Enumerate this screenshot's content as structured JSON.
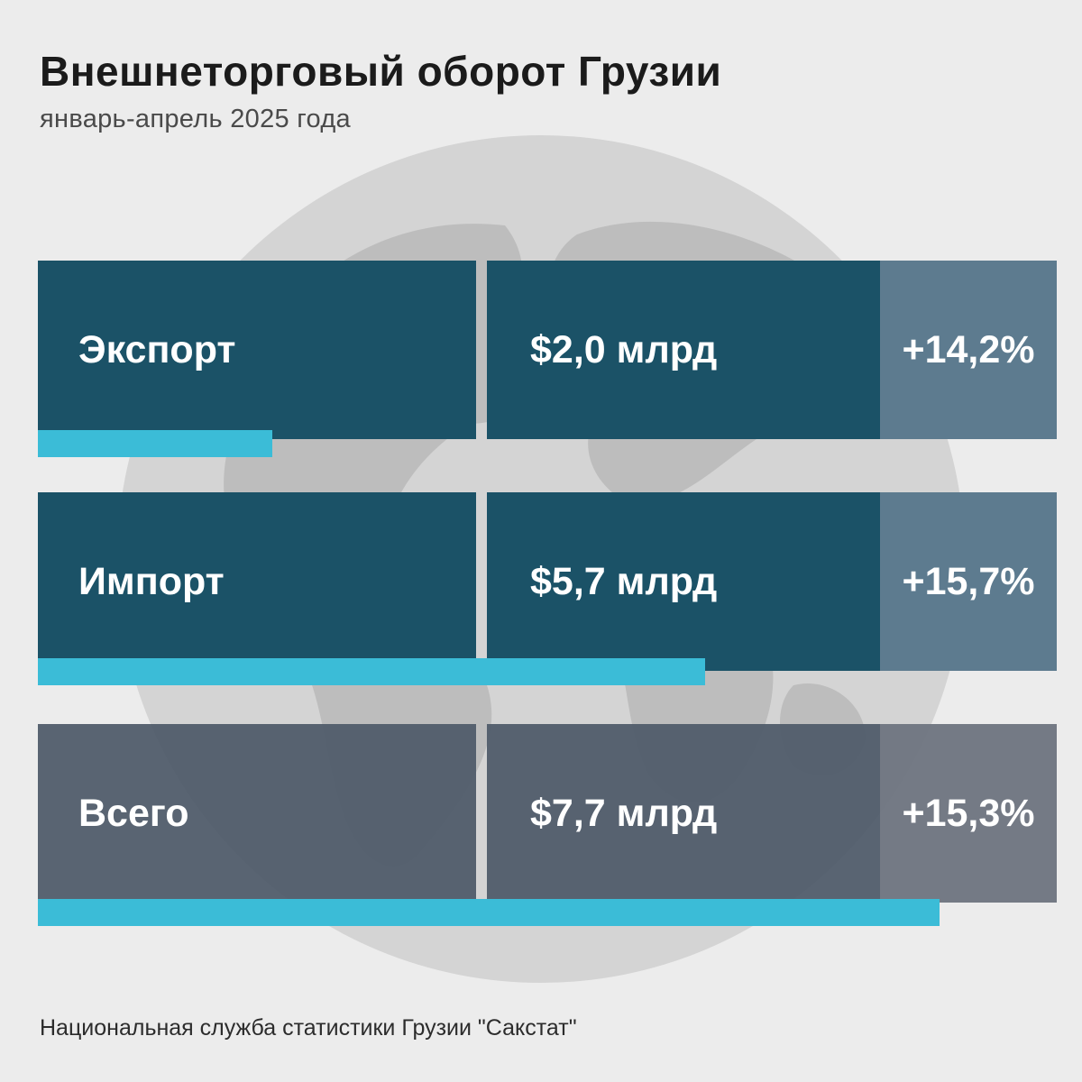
{
  "title": "Внешнеторговый оборот Грузии",
  "subtitle": "январь-апрель 2025 года",
  "source": "Национальная служба статистики Грузии \"Сакстат\"",
  "colors": {
    "row_dark": "#1b5267",
    "change_dark": "#5d7b8f",
    "row_slate": "#4e5968",
    "change_slate": "#6e7480",
    "bar": "#3bbcd7",
    "background": "#ececec"
  },
  "chart_data": {
    "type": "bar",
    "title": "Внешнеторговый оборот Грузии",
    "subtitle": "январь-апрель 2025 года",
    "categories": [
      "Экспорт",
      "Импорт",
      "Всего"
    ],
    "values": [
      2.0,
      5.7,
      7.7
    ],
    "value_labels": [
      "$2,0 млрд",
      "$5,7 млрд",
      "$7,7 млрд"
    ],
    "change_labels": [
      "+14,2%",
      "+15,7%",
      "+15,3%"
    ],
    "changes_pct": [
      14.2,
      15.7,
      15.3
    ],
    "unit": "млрд $",
    "xlim": [
      0,
      8.7
    ]
  }
}
